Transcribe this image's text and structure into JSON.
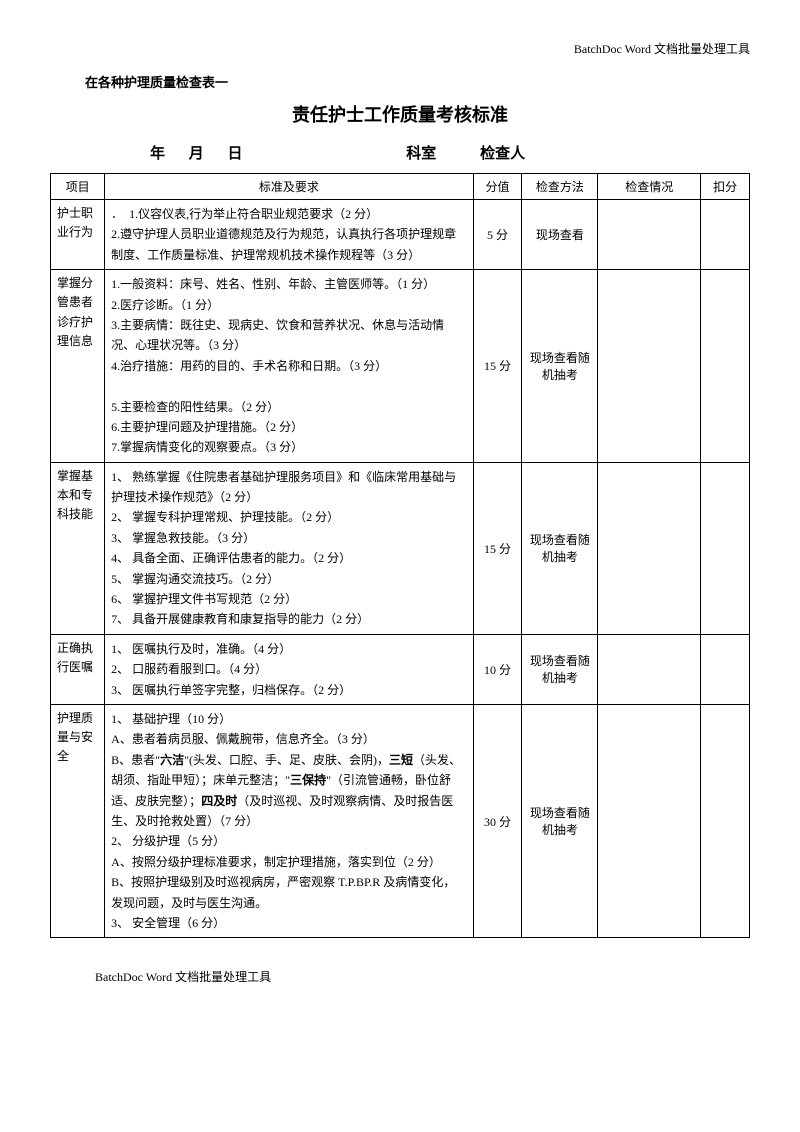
{
  "header": {
    "right_text": "BatchDoc Word 文档批量处理工具",
    "subtitle": "在各种护理质量检查表一",
    "main_title": "责任护士工作质量考核标准",
    "date_year": "年",
    "date_month": "月",
    "date_day": "日",
    "dept_label": "科室",
    "inspector_label": "检查人"
  },
  "table_headers": {
    "project": "项目",
    "criteria": "标准及要求",
    "score": "分值",
    "method": "检查方法",
    "check": "检查情况",
    "deduct": "扣分"
  },
  "rows": [
    {
      "project": "护士职业行为",
      "criteria_lines": [
        "．　1.仪容仪表,行为举止符合职业规范要求（2 分）",
        "2.遵守护理人员职业道德规范及行为规范，认真执行各项护理规章制度、工作质量标准、护理常规机技术操作规程等（3 分）"
      ],
      "score": "5 分",
      "method": "现场查看"
    },
    {
      "project": "掌握分 管患者 诊疗护 理信息",
      "criteria_lines": [
        "1.一般资料：床号、姓名、性别、年龄、主管医师等。（1 分）",
        "2.医疗诊断。（1 分）",
        "3.主要病情：既往史、现病史、饮食和营养状况、休息与活动情况、心理状况等。（3 分）",
        "4.治疗措施：用药的目的、手术名称和日期。（3 分）",
        "",
        "5.主要检查的阳性结果。（2 分）",
        "6.主要护理问题及护理措施。（2 分）",
        "7.掌握病情变化的观察要点。（3 分）"
      ],
      "score": "15 分",
      "method": "现场查看随机抽考"
    },
    {
      "project": "掌握基本和专科技能",
      "criteria_lines": [
        "1、 熟练掌握《住院患者基础护理服务项目》和《临床常用基础与护理技术操作规范》（2 分）",
        "2、 掌握专科护理常规、护理技能。（2 分）",
        "3、 掌握急救技能。（3 分）",
        "4、 具备全面、正确评估患者的能力。（2 分）",
        "5、 掌握沟通交流技巧。（2 分）",
        "6、 掌握护理文件书写规范（2 分）",
        "7、 具备开展健康教育和康复指导的能力（2 分）"
      ],
      "score": "15 分",
      "method": "现场查看随机抽考"
    },
    {
      "project": "正确执行医嘱",
      "criteria_lines": [
        "1、 医嘱执行及时，准确。（4 分）",
        "2、 口服药看服到口。（4 分）",
        "3、 医嘱执行单签字完整，归档保存。（2 分）"
      ],
      "score": "10 分",
      "method": "现场查看随机抽考"
    },
    {
      "project": "护理质量与安全",
      "criteria_html": "1、 基础护理（10 分）<br>A、患者着病员服、佩戴腕带，信息齐全。（3 分）<br>B、患者\"<span class='bold'>六洁</span>\"(头发、口腔、手、足、皮肤、会阴)，<span class='bold'>三短</span>（头发、胡须、指趾甲短）；床单元整洁；\"<span class='bold'>三保持</span>\"（引流管通畅，卧位舒适、皮肤完整）；<span class='bold'>四及时</span>（及时巡视、及时观察病情、及时报告医生、及时抢救处置）（7 分）<br>2、 分级护理（5 分）<br>A、按照分级护理标准要求，制定护理措施，落实到位（2 分）<br>B、按照护理级别及时巡视病房，严密观察 T.P.BP.R 及病情变化，发现问题，及时与医生沟通。<br>3、 安全管理（6 分）",
      "score": "30 分",
      "method": "现场查看随机抽考"
    }
  ],
  "footer": "BatchDoc Word 文档批量处理工具"
}
